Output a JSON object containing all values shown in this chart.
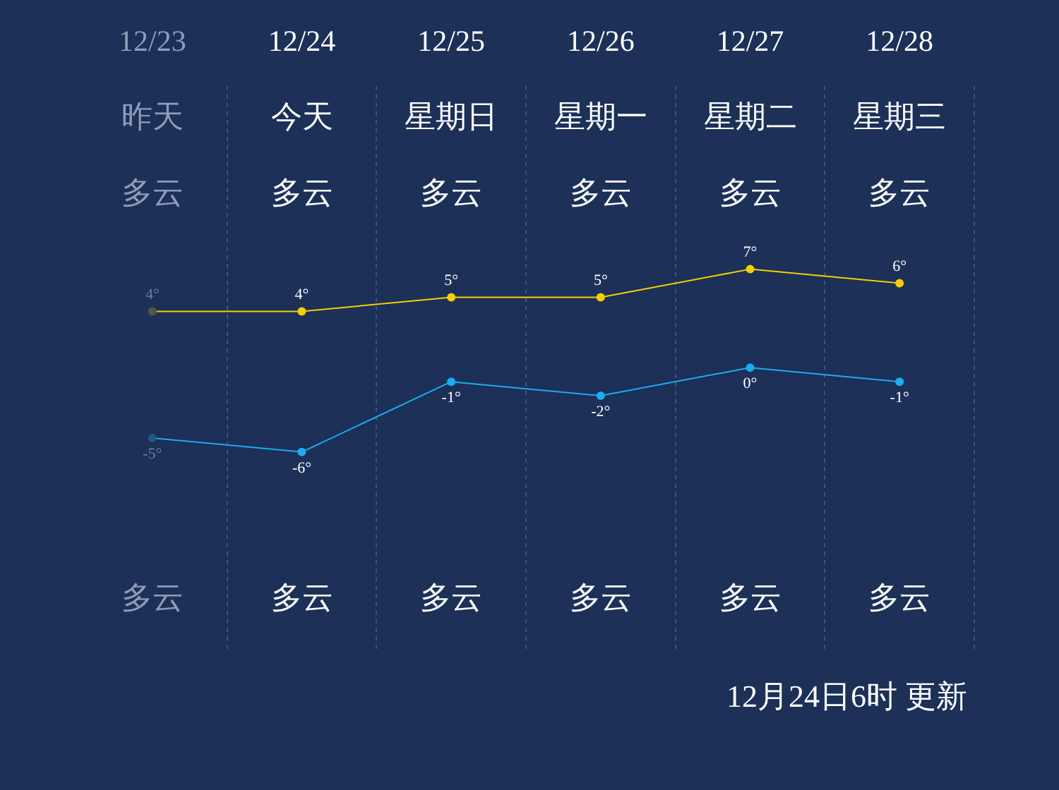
{
  "chart_data": {
    "type": "line",
    "categories": [
      "12/23",
      "12/24",
      "12/25",
      "12/26",
      "12/27",
      "12/28"
    ],
    "series": [
      {
        "color": "#f5d000",
        "colors": [
          "#4f5a3e",
          "#f5d000",
          "#f5d000",
          "#f5d000",
          "#f5d000",
          "#f5d000"
        ],
        "values": [
          4,
          4,
          5,
          5,
          7,
          6
        ],
        "value_labels": [
          "4°",
          "4°",
          "5°",
          "5°",
          "7°",
          "6°"
        ]
      },
      {
        "color": "#1aaef0",
        "colors": [
          "#1f5a86",
          "#1aaef0",
          "#1aaef0",
          "#1aaef0",
          "#1aaef0",
          "#1aaef0"
        ],
        "values": [
          -5,
          -6,
          -1,
          -2,
          0,
          -1
        ],
        "value_labels": [
          "-5°",
          "-6°",
          "-1°",
          "-2°",
          "0°",
          "-1°"
        ]
      }
    ],
    "annotations": [
      "昨天",
      "今天",
      "星期日",
      "星期一",
      "星期二",
      "星期三",
      "多云",
      "多云",
      "多云",
      "多云",
      "多云",
      "多云",
      "多云",
      "多云",
      "多云",
      "多云",
      "多云",
      "多云",
      "12月24日6时 更新"
    ],
    "grid": "x",
    "legend": false,
    "marker": "circle",
    "line_style": "solid"
  }
}
